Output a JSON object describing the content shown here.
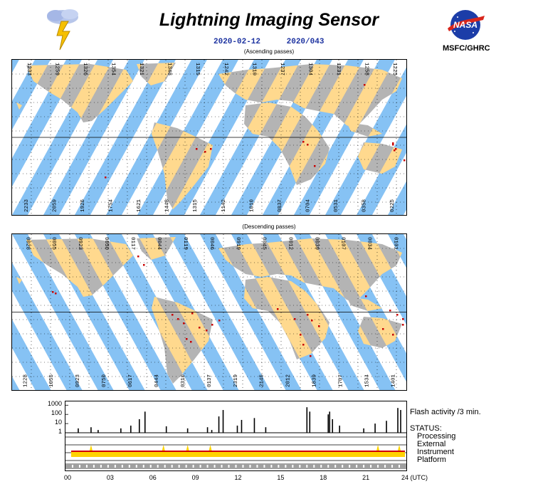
{
  "header": {
    "title": "Lightning Imaging Sensor",
    "date": "2020-02-12",
    "day_of_year": "2020/043",
    "organization": "MSFC/GHRC",
    "logo_text": "NASA"
  },
  "maps": {
    "ascending": {
      "caption": "(Ascending passes)",
      "top_ticks": [
        "1233",
        "1259",
        "1326",
        "1354",
        "1321",
        "1348",
        "1315",
        "1242",
        "1310",
        "1237",
        "1304",
        "1231",
        "1258",
        "1225"
      ],
      "bottom_ticks": [
        "2233",
        "2059",
        "1926",
        "1754",
        "1621",
        "1448",
        "1315",
        "1142",
        "1010",
        "0837",
        "0704",
        "0531",
        "0358",
        "0225"
      ]
    },
    "descending": {
      "caption": "(Descending passes)",
      "top_ticks": [
        "0028",
        "0055",
        "0923",
        "0050",
        "0117",
        "0044",
        "0119",
        "0046",
        "0919",
        "0045",
        "0012",
        "0039",
        "0107",
        "0034",
        "0101"
      ],
      "bottom_ticks": [
        "1228",
        "1055",
        "0923",
        "0750",
        "0617",
        "0444",
        "0310",
        "0137",
        "2319",
        "2145",
        "2012",
        "1839",
        "1707",
        "1534",
        "1401"
      ]
    }
  },
  "status": {
    "y_ticks": [
      "1000",
      "100",
      "10",
      "1"
    ],
    "x_ticks": [
      "00",
      "03",
      "06",
      "09",
      "12",
      "15",
      "18",
      "21",
      "24 (UTC)"
    ],
    "flash_label": "Flash activity /3 min.",
    "status_heading": "STATUS:",
    "rows": [
      "Processing",
      "External",
      "Instrument",
      "Platform"
    ],
    "flash_hours": [
      0.9,
      1.8,
      2.3,
      3.9,
      4.6,
      5.2,
      5.6,
      7.1,
      8.6,
      10.0,
      10.3,
      10.8,
      11.1,
      12.1,
      12.4,
      13.3,
      14.1,
      17.0,
      17.2,
      18.5,
      18.6,
      18.8,
      19.3,
      21.0,
      21.8,
      22.6,
      23.4,
      23.6
    ],
    "flash_counts": [
      3,
      4,
      2,
      3,
      6,
      30,
      200,
      5,
      3,
      4,
      2,
      60,
      300,
      6,
      25,
      40,
      4,
      600,
      200,
      100,
      200,
      30,
      6,
      3,
      10,
      20,
      500,
      300
    ],
    "colors": {
      "processing": "#a0a0a0",
      "instrument": "#ffd200",
      "instrument_line": "#d00000"
    }
  },
  "legend_colors": {
    "swath": "#86c2f4",
    "land": "#ffd98e",
    "land_dark": "#b4b4b4",
    "flash": "#c80000"
  }
}
